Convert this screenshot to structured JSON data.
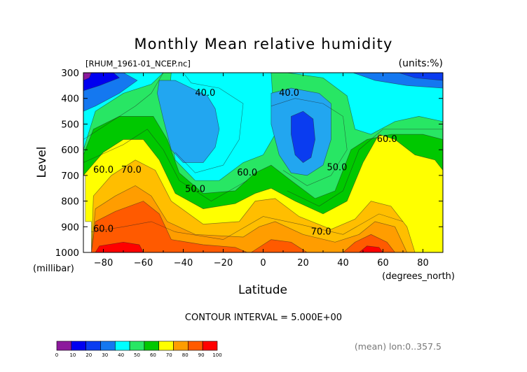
{
  "chart_data": {
    "type": "contour",
    "title": "Monthly Mean relative humidity",
    "source_label": "[RHUM_1961-01_NCEP.nc]",
    "units_label": "(units:%)",
    "xlabel": "Latitude",
    "x_unit_label": "(degrees_north)",
    "ylabel": "Level",
    "y_unit_label": "(millibar)",
    "x_range": [
      -90,
      90
    ],
    "y_range": [
      1000,
      300
    ],
    "x_ticks": [
      -80,
      -60,
      -40,
      -20,
      0,
      20,
      40,
      60,
      80
    ],
    "y_ticks": [
      300,
      400,
      500,
      600,
      700,
      800,
      900,
      1000
    ],
    "levels": [
      0,
      10,
      20,
      30,
      40,
      50,
      60,
      70,
      80,
      90,
      100
    ],
    "contour_interval_text": "CONTOUR INTERVAL = 5.000E+00",
    "footer_note": "(mean) lon:0..357.5",
    "contour_labels": [
      {
        "text": "40.0",
        "lat": -29,
        "level": 390
      },
      {
        "text": "40.0",
        "lat": 13,
        "level": 390
      },
      {
        "text": "60.0",
        "lat": 62,
        "level": 570
      },
      {
        "text": "60.0",
        "lat": -80,
        "level": 690
      },
      {
        "text": "70.0",
        "lat": -66,
        "level": 690
      },
      {
        "text": "60.0",
        "lat": -8,
        "level": 700
      },
      {
        "text": "50.0",
        "lat": 37,
        "level": 680
      },
      {
        "text": "50.0",
        "lat": -34,
        "level": 765
      },
      {
        "text": "60.0",
        "lat": -80,
        "level": 920
      },
      {
        "text": "70.0",
        "lat": 29,
        "level": 930
      }
    ],
    "colorbar": {
      "colors": [
        "#8c1a9c",
        "#0000f0",
        "#0a3cf0",
        "#1478f0",
        "#00ffff",
        "#28e664",
        "#00c800",
        "#ffff00",
        "#ff9d00",
        "#ff5a00",
        "#ff0000"
      ],
      "tick_labels": [
        "0",
        "10",
        "20",
        "30",
        "40",
        "50",
        "60",
        "70",
        "80",
        "90",
        "100"
      ]
    },
    "fill_colors": {
      "purple": "#8c1a9c",
      "blue": "#0000f0",
      "mid_blue": "#0a3cf0",
      "light_blue": "#1478f0",
      "sky": "#22a6f0",
      "cyan": "#00ffff",
      "light_green": "#28e664",
      "green": "#00c800",
      "yellow": "#ffff00",
      "orange_light": "#ffbe00",
      "orange": "#ff9d00",
      "red_orange": "#ff5a00",
      "red": "#ff0000"
    }
  }
}
